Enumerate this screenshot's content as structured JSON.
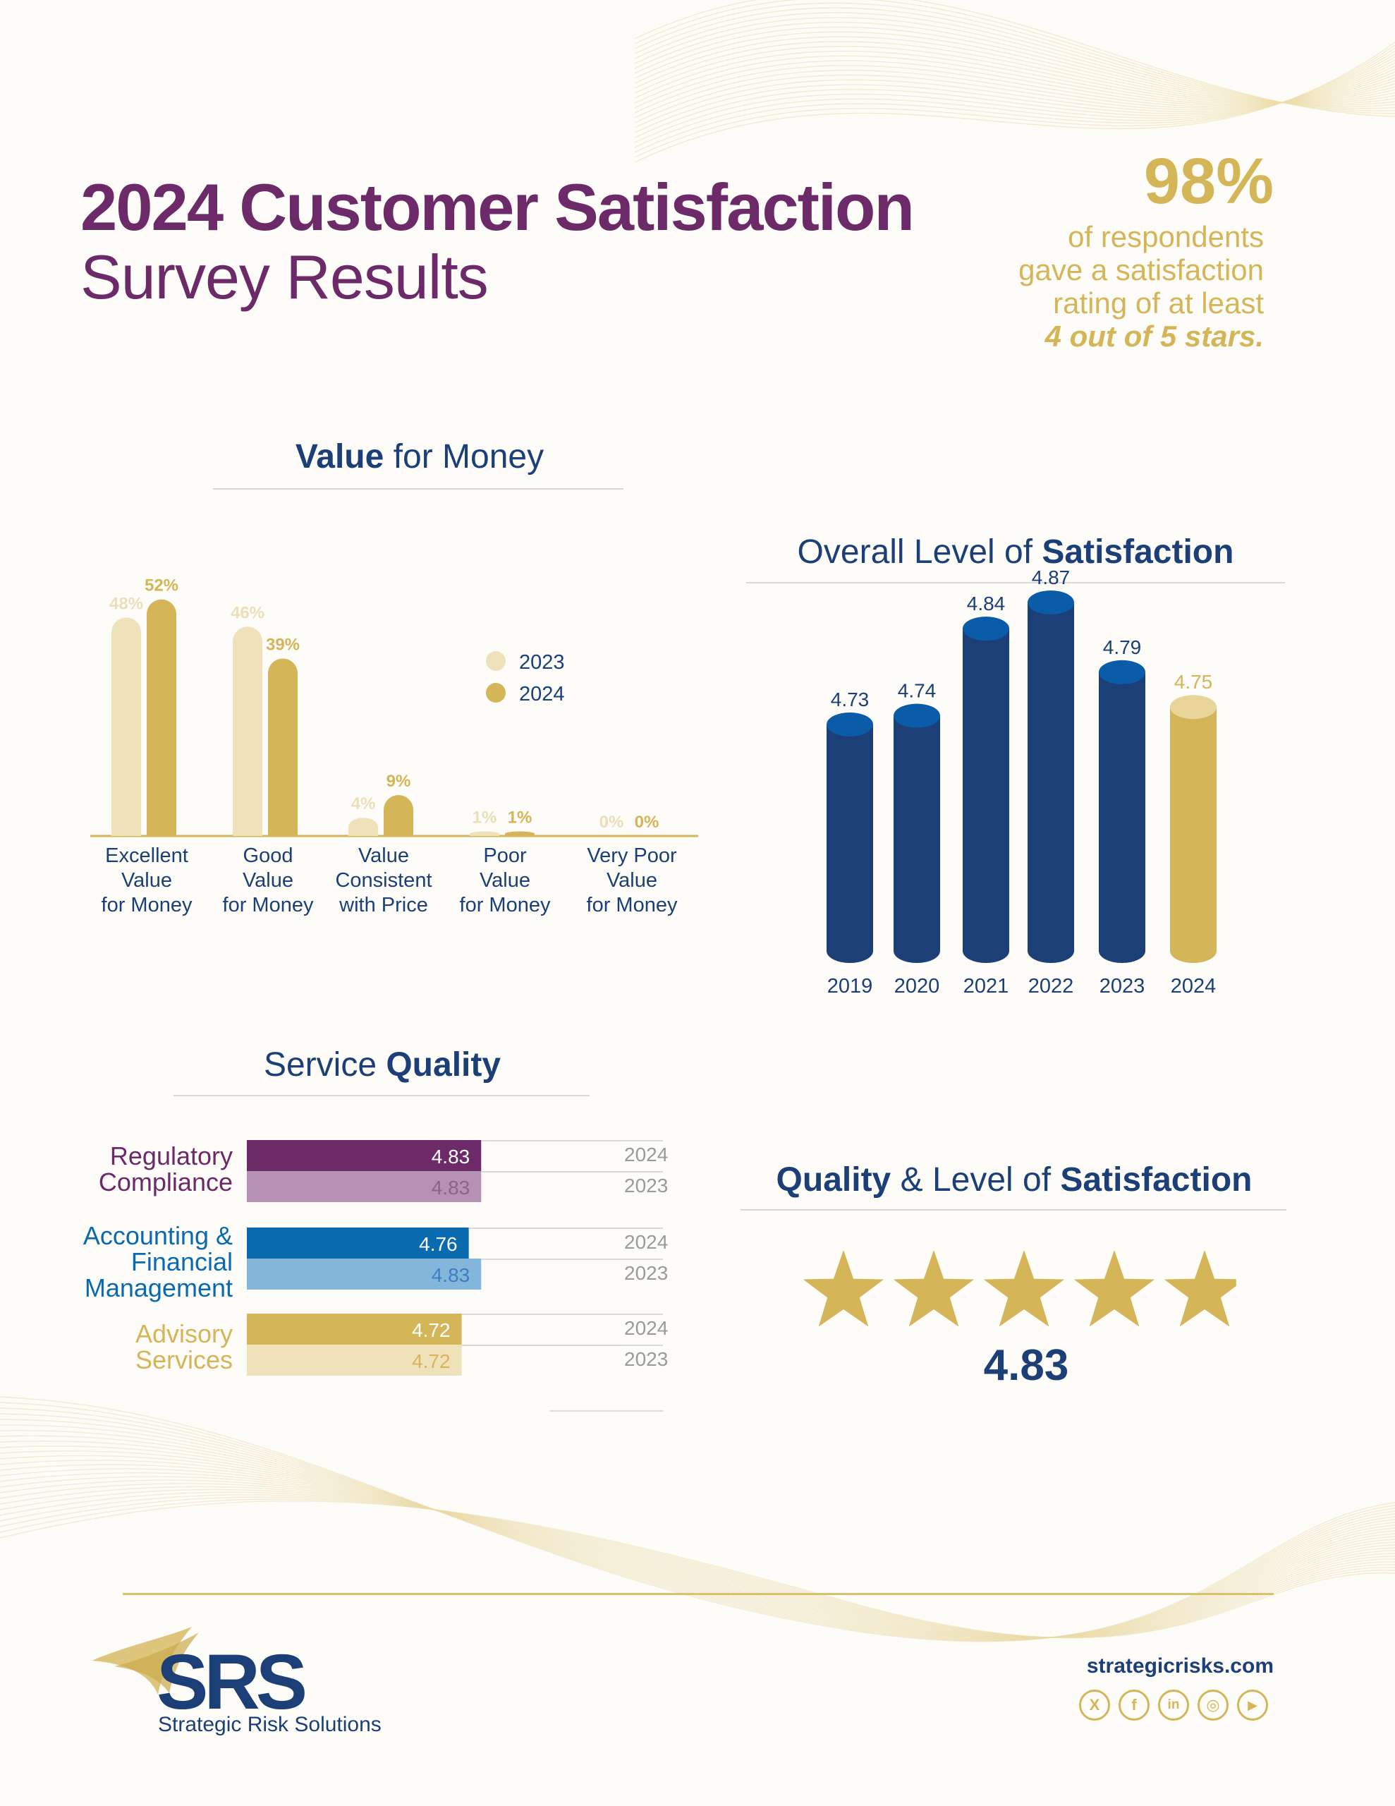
{
  "title": {
    "line1": "2024 Customer Satisfaction",
    "line2": "Survey Results"
  },
  "highlight": {
    "value": "98%",
    "lines": [
      "of respondents",
      "gave a satisfaction",
      "rating of at least"
    ],
    "emphasis": "4 out of 5 stars."
  },
  "value_for_money": {
    "title_bold": "Value",
    "title_rest": " for Money"
  },
  "overall_satisfaction": {
    "title_rest": "Overall Level of ",
    "title_bold": "Satisfaction"
  },
  "service_quality": {
    "title_rest": "Service ",
    "title_bold": "Quality",
    "labels": [
      [
        "Regulatory",
        "Compliance"
      ],
      [
        "Accounting &",
        "Financial",
        "Management"
      ],
      [
        "Advisory",
        "Services"
      ]
    ]
  },
  "quality_satisfaction": {
    "title_bold1": "Quality",
    "title_rest1": " & Level of ",
    "title_bold2": "Satisfaction",
    "value_label": "4.83"
  },
  "footer": {
    "logo_text": "SRS",
    "logo_subtitle": "Strategic Risk Solutions",
    "website": "strategicrisks.com",
    "social_icons": [
      "x-icon",
      "facebook-icon",
      "linkedin-icon",
      "instagram-icon",
      "youtube-icon"
    ],
    "social_glyphs": [
      "X",
      "f",
      "in",
      "◎",
      "▶"
    ]
  },
  "colors": {
    "purple": "#6c2a68",
    "navy": "#1b3f76",
    "gold": "#d4b558",
    "gold_light": "#efe2bb",
    "blue": "#0a6ab0",
    "blue_light": "#83b6da",
    "purple_light": "#b592b5"
  },
  "chart_data": [
    {
      "type": "bar",
      "title": "Value for Money",
      "categories": [
        [
          "Excellent",
          "Value",
          "for Money"
        ],
        [
          "Good",
          "Value",
          "for Money"
        ],
        [
          "Value",
          "Consistent",
          "with Price"
        ],
        [
          "Poor",
          "Value",
          "for Money"
        ],
        [
          "Very Poor",
          "Value",
          "for Money"
        ]
      ],
      "series": [
        {
          "name": "2023",
          "values": [
            48,
            46,
            4,
            1,
            0
          ],
          "labels": [
            "48%",
            "46%",
            "4%",
            "1%",
            "0%"
          ]
        },
        {
          "name": "2024",
          "values": [
            52,
            39,
            9,
            1,
            0
          ],
          "labels": [
            "52%",
            "39%",
            "9%",
            "1%",
            "0%"
          ]
        }
      ],
      "unit": "%",
      "legend": "right",
      "ylim": [
        0,
        55
      ]
    },
    {
      "type": "bar",
      "title": "Overall Level of Satisfaction",
      "categories": [
        "2019",
        "2020",
        "2021",
        "2022",
        "2023",
        "2024"
      ],
      "values": [
        4.73,
        4.74,
        4.84,
        4.87,
        4.79,
        4.75
      ],
      "labels": [
        "4.73",
        "4.74",
        "4.84",
        "4.87",
        "4.79",
        "4.75"
      ],
      "highlight_category": "2024"
    },
    {
      "type": "bar",
      "orientation": "horizontal",
      "title": "Service Quality",
      "categories": [
        "Regulatory Compliance",
        "Accounting & Financial Management",
        "Advisory Services"
      ],
      "series": [
        {
          "name": "2024",
          "values": [
            4.83,
            4.76,
            4.72
          ],
          "labels": [
            "4.83",
            "4.76",
            "4.72"
          ]
        },
        {
          "name": "2023",
          "values": [
            4.83,
            4.83,
            4.72
          ],
          "labels": [
            "4.83",
            "4.83",
            "4.72"
          ]
        }
      ],
      "xlim": [
        3,
        5
      ]
    },
    {
      "type": "rating",
      "title": "Quality & Level of Satisfaction",
      "value": 4.83,
      "max": 5,
      "value_label": "4.83"
    }
  ]
}
